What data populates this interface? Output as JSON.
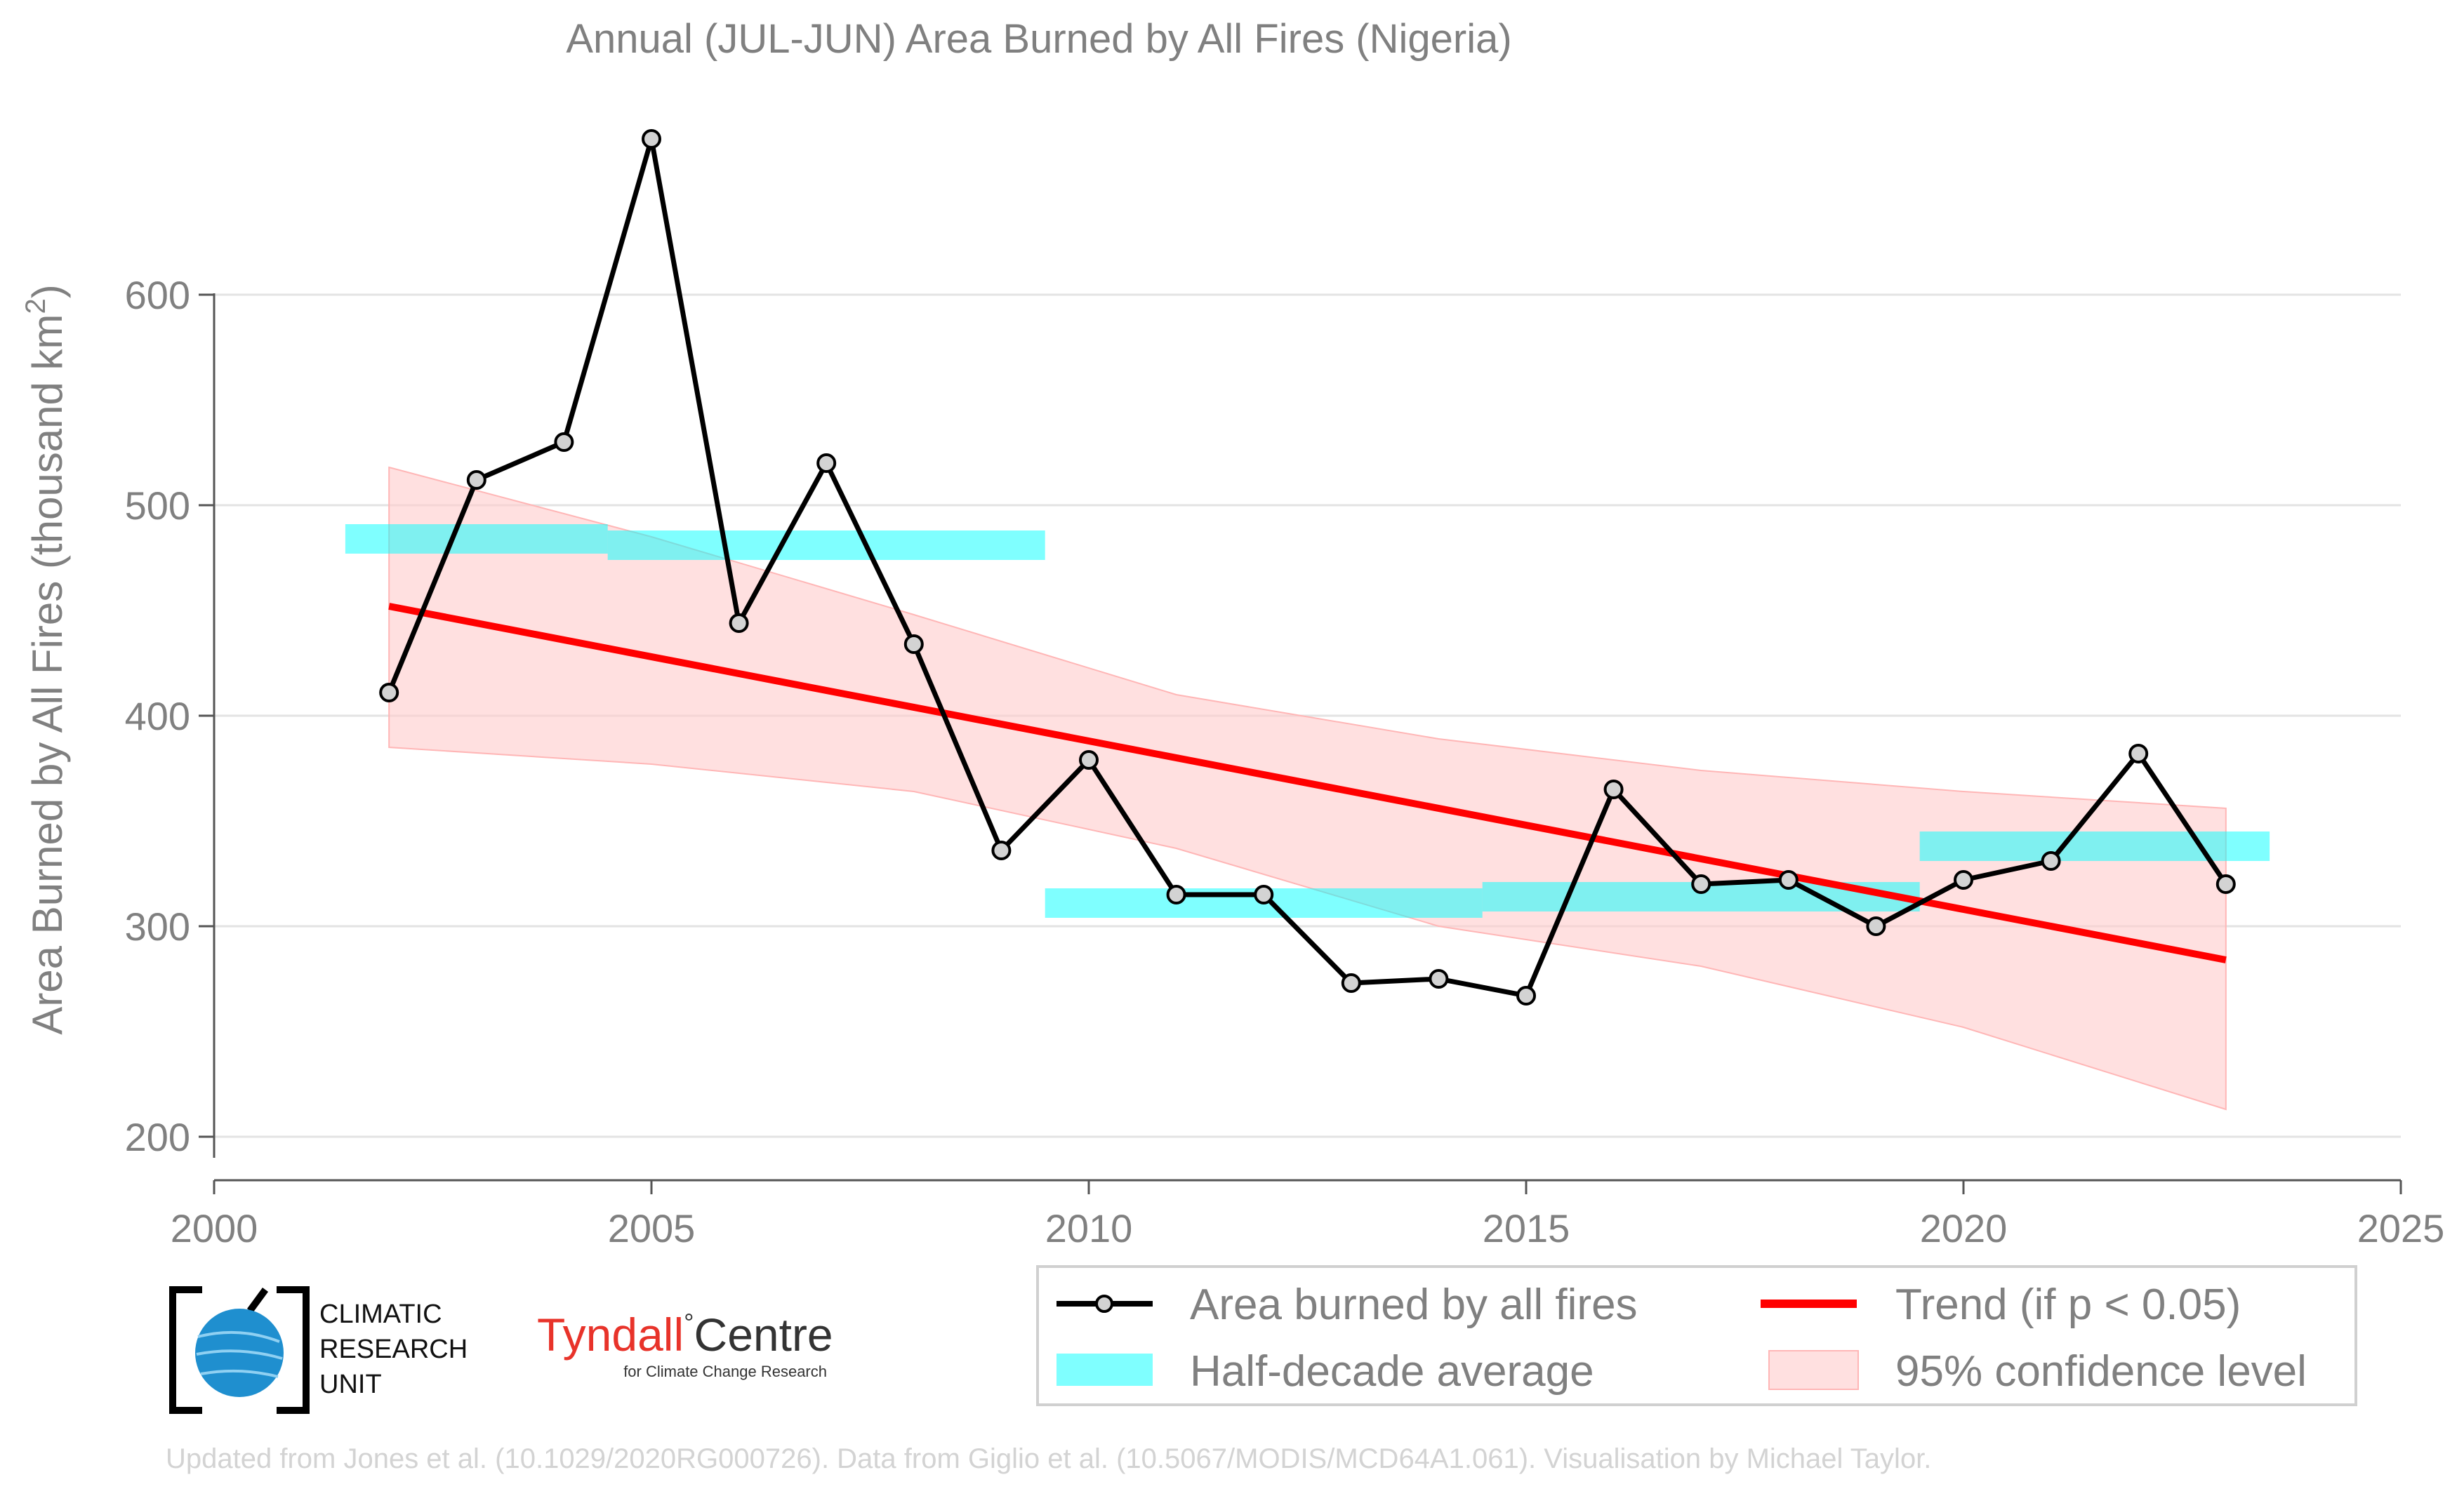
{
  "chart_data": {
    "type": "line",
    "title": "Annual (JUL-JUN) Area Burned by All Fires (Nigeria)",
    "ylabel_main": "Area Burned by All Fires (thousand km",
    "ylabel_sup": "2",
    "ylabel_close": ")",
    "xlim": [
      2000,
      2025
    ],
    "ylim": [
      190,
      690
    ],
    "x_ticks": [
      2000,
      2005,
      2010,
      2015,
      2020,
      2025
    ],
    "y_ticks": [
      200,
      300,
      400,
      500,
      600
    ],
    "grid": "horizontal",
    "legend_position": "bottom-right",
    "series": [
      {
        "name": "Area burned by all fires",
        "color": "#000000",
        "marker_color": "#d3d3d3",
        "x": [
          2002,
          2003,
          2004,
          2005,
          2006,
          2007,
          2008,
          2009,
          2010,
          2011,
          2012,
          2013,
          2014,
          2015,
          2016,
          2017,
          2018,
          2019,
          2020,
          2021,
          2022,
          2023
        ],
        "y": [
          411,
          512,
          530,
          674,
          444,
          520,
          434,
          336,
          379,
          315,
          315,
          273,
          275,
          267,
          365,
          320,
          322,
          300,
          322,
          331,
          382,
          320
        ]
      },
      {
        "name": "Trend (if p < 0.05)",
        "color": "#ff0000",
        "x": [
          2002,
          2023
        ],
        "y": [
          452,
          284
        ]
      }
    ],
    "half_decade_average": {
      "name": "Half-decade average",
      "color": "#00ffff",
      "segments": [
        {
          "x_start": 2001.5,
          "x_end": 2004.5,
          "y": 484
        },
        {
          "x_start": 2004.5,
          "x_end": 2009.5,
          "y": 481
        },
        {
          "x_start": 2009.5,
          "x_end": 2014.5,
          "y": 311
        },
        {
          "x_start": 2014.5,
          "x_end": 2019.5,
          "y": 314
        },
        {
          "x_start": 2019.5,
          "x_end": 2023.5,
          "y": 338
        }
      ]
    },
    "confidence_band": {
      "name": "95% confidence level",
      "color": "#ffb6b6",
      "x": [
        2002,
        2005,
        2008,
        2011,
        2014,
        2017,
        2020,
        2023
      ],
      "upper": [
        518,
        485,
        448,
        410,
        389,
        374,
        364,
        356
      ],
      "lower": [
        385,
        377,
        364,
        337,
        300,
        281,
        252,
        213
      ]
    },
    "legend": [
      {
        "label": "Area burned by all fires",
        "kind": "line-marker"
      },
      {
        "label": "Trend (if p < 0.05)",
        "kind": "line-red"
      },
      {
        "label": "Half-decade average",
        "kind": "box-cyan"
      },
      {
        "label": "95% confidence level",
        "kind": "box-pink"
      }
    ]
  },
  "logos": {
    "cru_line1": "CLIMATIC",
    "cru_line2": "RESEARCH",
    "cru_line3": "UNIT",
    "tyndall_name": "Tyndall",
    "tyndall_degree": "°",
    "tyndall_centre": "Centre",
    "tyndall_sub": "for Climate Change Research"
  },
  "footer": "Updated from Jones et al. (10.1029/2020RG000726). Data from Giglio et al. (10.5067/MODIS/MCD64A1.061). Visualisation by Michael Taylor."
}
